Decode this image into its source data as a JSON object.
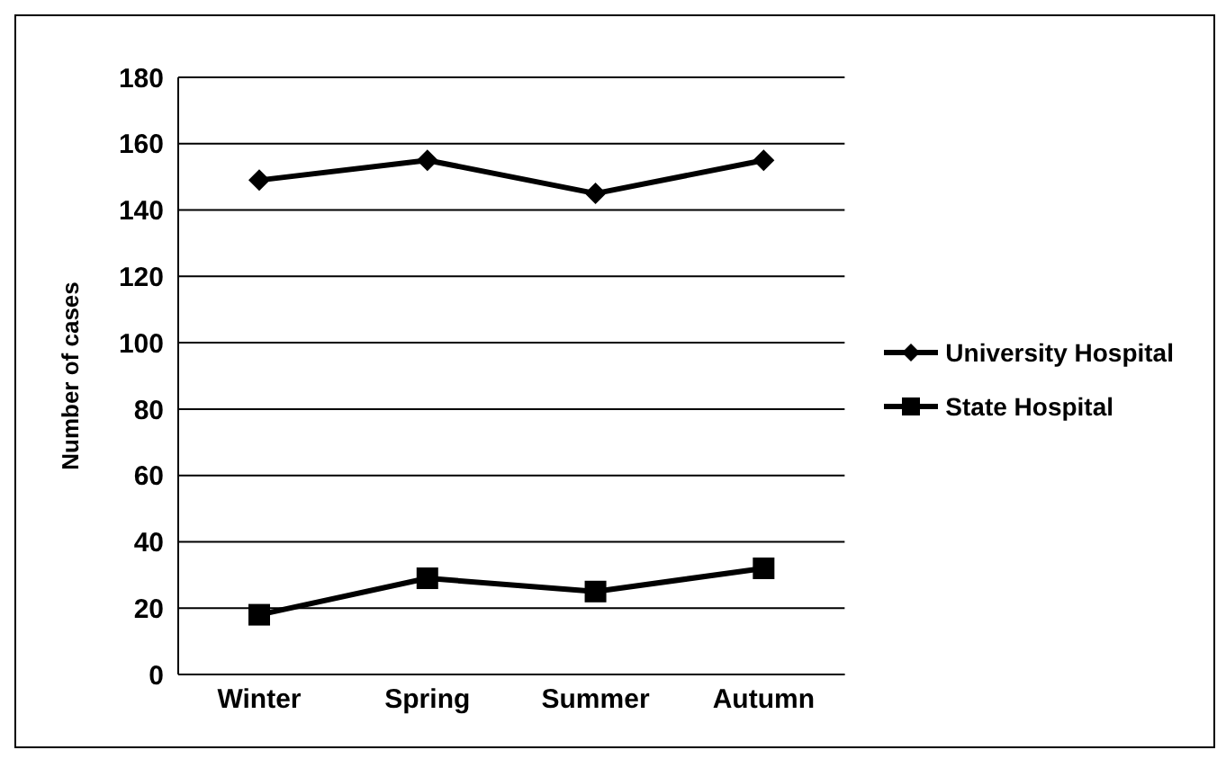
{
  "chart_data": {
    "type": "line",
    "ylabel": "Number of cases",
    "categories": [
      "Winter",
      "Spring",
      "Summer",
      "Autumn"
    ],
    "series": [
      {
        "name": "University Hospital",
        "color": "#000000",
        "marker": "diamond",
        "values": [
          149,
          155,
          145,
          155
        ]
      },
      {
        "name": "State Hospital",
        "color": "#000000",
        "marker": "square",
        "values": [
          18,
          29,
          25,
          32
        ]
      }
    ],
    "ylim": [
      0,
      180
    ],
    "yticks": [
      0,
      20,
      40,
      60,
      80,
      100,
      120,
      140,
      160,
      180
    ],
    "grid": "y",
    "legend": "right"
  }
}
